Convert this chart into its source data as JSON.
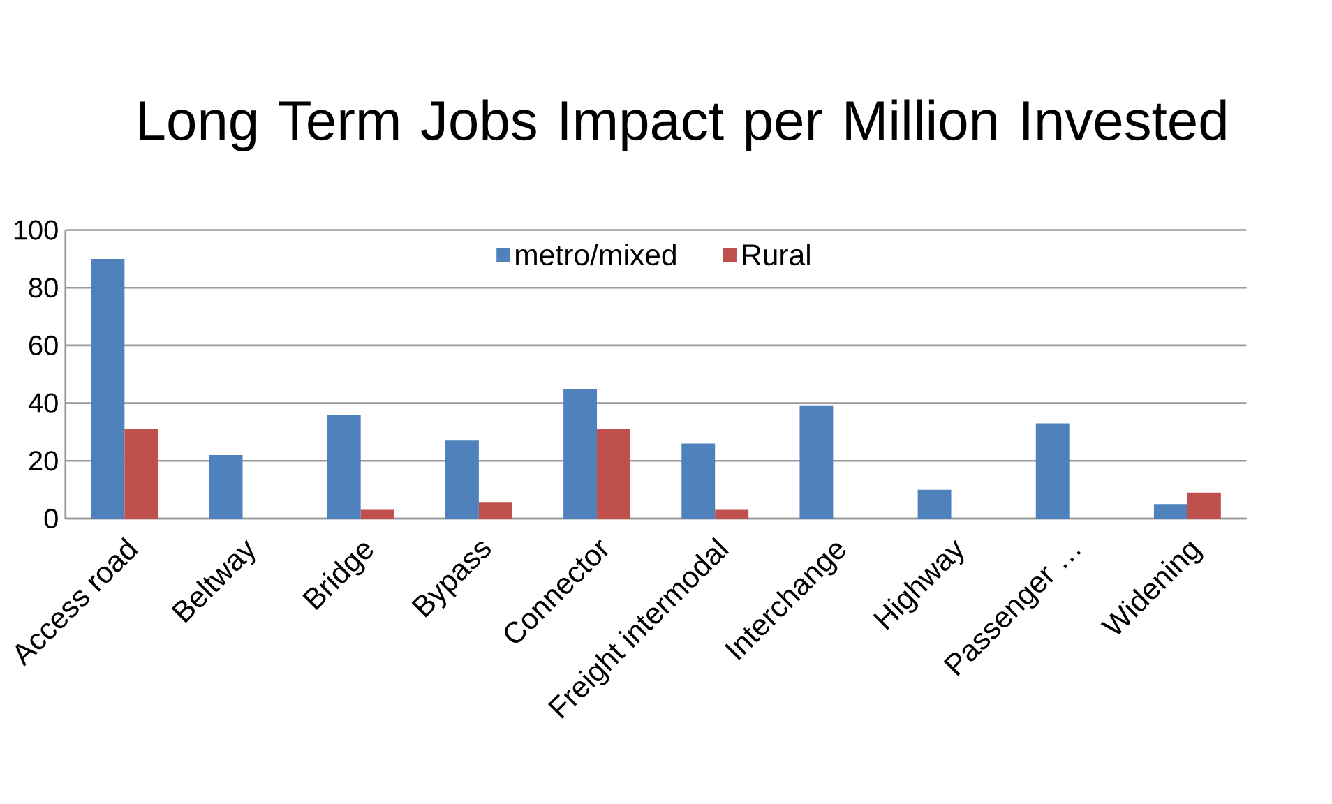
{
  "chart_data": {
    "type": "bar",
    "title": "Long Term Jobs Impact per Million Invested",
    "categories": [
      "Access road",
      "Beltway",
      "Bridge",
      "Bypass",
      "Connector",
      "Freight intermodal",
      "Interchange",
      "Highway",
      "Passenger …",
      "Widening"
    ],
    "series": [
      {
        "name": "metro/mixed",
        "color": "#4f81bd",
        "values": [
          90,
          22,
          36,
          27,
          45,
          26,
          39,
          10,
          33,
          5
        ]
      },
      {
        "name": "Rural",
        "color": "#c0504d",
        "values": [
          31,
          0,
          3,
          5.5,
          31,
          3,
          0,
          0,
          0,
          9
        ]
      }
    ],
    "ylim": [
      0,
      100
    ],
    "yticks": [
      0,
      20,
      40,
      60,
      80,
      100
    ],
    "grid": "y",
    "legend": "top"
  }
}
